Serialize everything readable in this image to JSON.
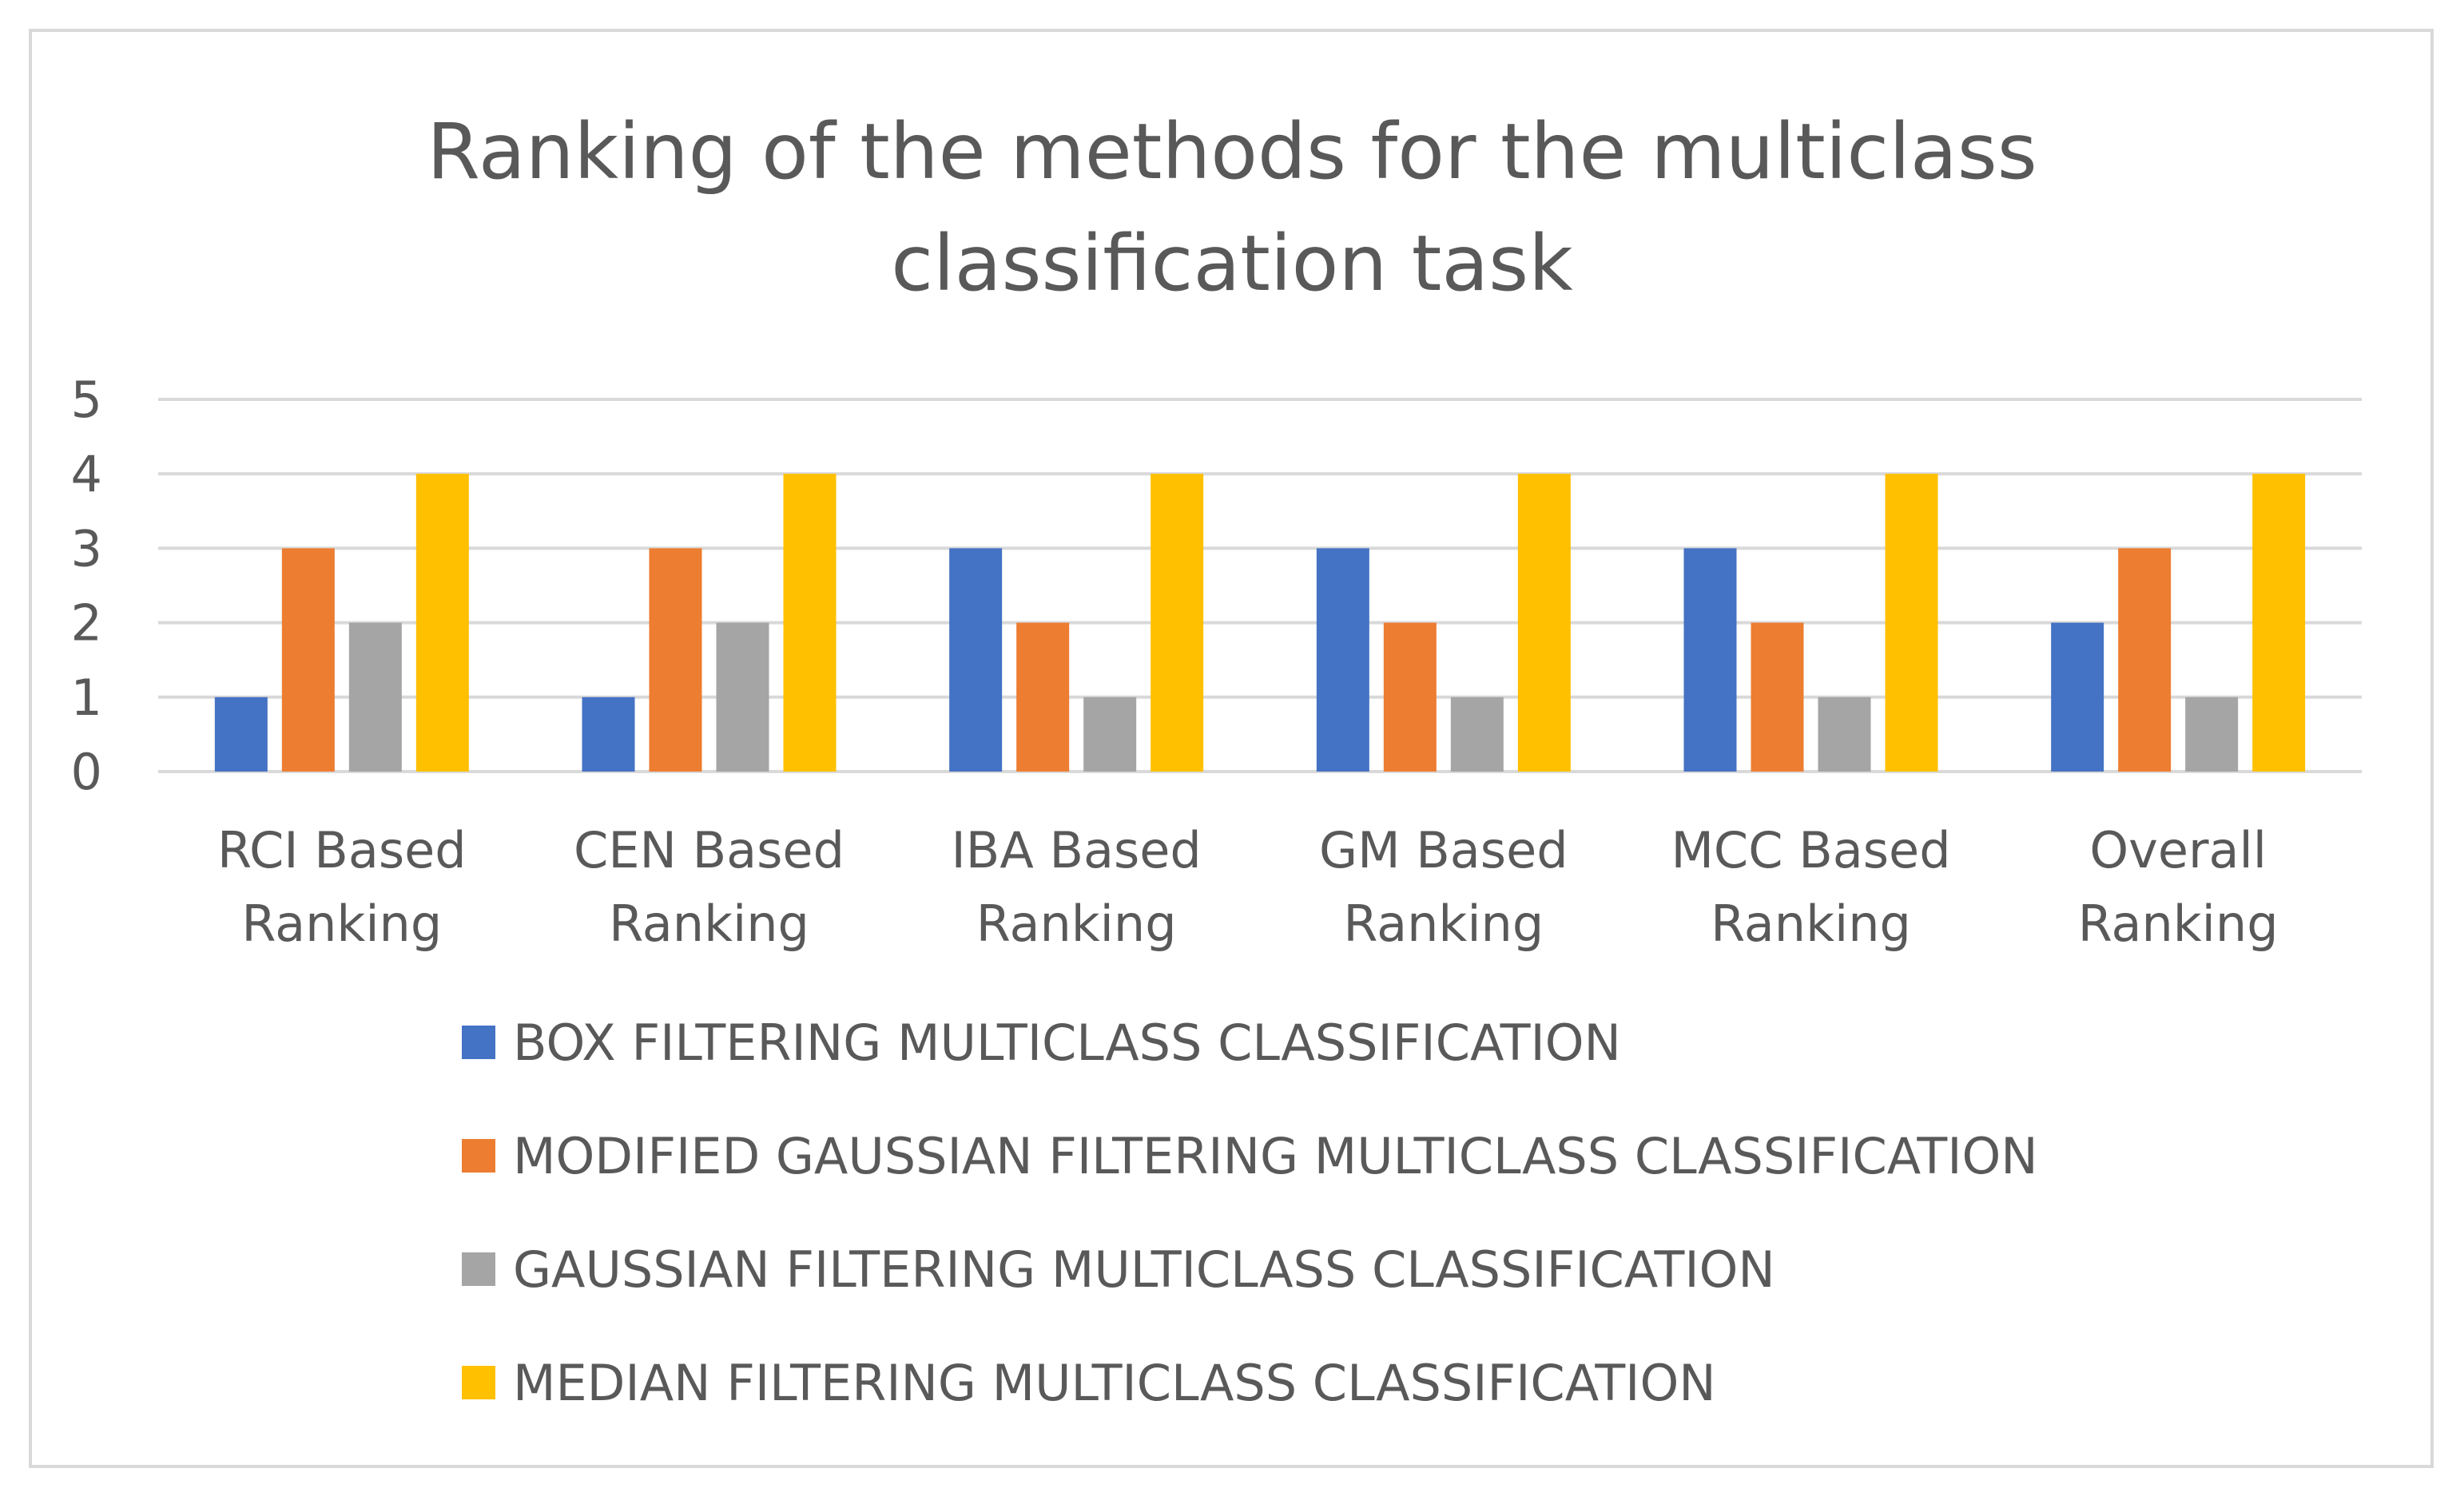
{
  "chart_data": {
    "type": "bar",
    "title_lines": [
      "Ranking of the methods for the multiclass",
      "classification task"
    ],
    "categories": [
      [
        "RCI Based",
        "Ranking"
      ],
      [
        "CEN Based",
        "Ranking"
      ],
      [
        "IBA Based",
        "Ranking"
      ],
      [
        "GM Based",
        "Ranking"
      ],
      [
        "MCC Based",
        "Ranking"
      ],
      [
        "Overall",
        "Ranking"
      ]
    ],
    "series": [
      {
        "name": "BOX FILTERING MULTICLASS CLASSIFICATION",
        "color": "#4472c4",
        "values": [
          1,
          1,
          3,
          3,
          3,
          2
        ]
      },
      {
        "name": "MODIFIED GAUSSIAN FILTERING MULTICLASS CLASSIFICATION",
        "color": "#ed7d31",
        "values": [
          3,
          3,
          2,
          2,
          2,
          3
        ]
      },
      {
        "name": "GAUSSIAN FILTERING MULTICLASS CLASSIFICATION",
        "color": "#a5a5a5",
        "values": [
          2,
          2,
          1,
          1,
          1,
          1
        ]
      },
      {
        "name": "MEDIAN FILTERING MULTICLASS CLASSIFICATION",
        "color": "#ffc000",
        "values": [
          4,
          4,
          4,
          4,
          4,
          4
        ]
      }
    ],
    "yticks": [
      "0",
      "1",
      "2",
      "3",
      "4",
      "5"
    ],
    "ylim": [
      0,
      5
    ],
    "grid": true,
    "legend_position": "bottom"
  }
}
